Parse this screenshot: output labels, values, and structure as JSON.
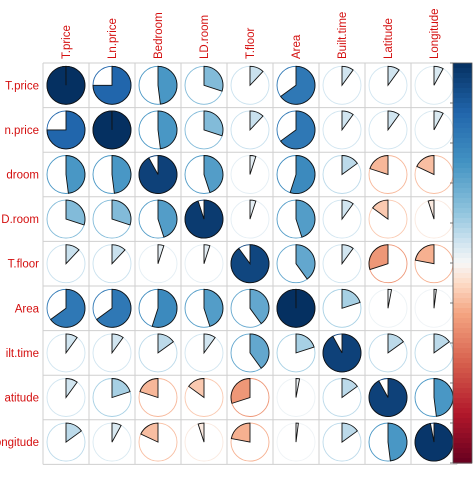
{
  "chart_data": {
    "type": "heatmap",
    "variables": [
      "T.price",
      "Ln.price",
      "Bedroom",
      "LD.room",
      "T.floor",
      "Area",
      "Built.time",
      "Latitude",
      "Longitude"
    ],
    "row_labels": [
      "T.price",
      "n.price",
      "droom",
      "D.room",
      "T.floor",
      "Area",
      "ilt.time",
      "atitude",
      "ongitude"
    ],
    "column_labels": [
      "T.price",
      "Ln.price",
      "Bedroom",
      "LD.room",
      "T.floor",
      "Area",
      "Built.time",
      "Latitude",
      "Longitude"
    ],
    "matrix": [
      [
        1.0,
        0.75,
        0.48,
        0.3,
        0.12,
        0.65,
        0.1,
        0.1,
        0.08
      ],
      [
        0.75,
        1.0,
        0.48,
        0.3,
        0.12,
        0.65,
        0.1,
        0.1,
        0.08
      ],
      [
        0.48,
        0.48,
        0.92,
        0.45,
        0.05,
        0.55,
        0.15,
        -0.2,
        -0.18
      ],
      [
        0.3,
        0.3,
        0.45,
        0.95,
        0.05,
        0.45,
        0.1,
        -0.15,
        -0.05
      ],
      [
        0.12,
        0.12,
        0.05,
        0.05,
        0.9,
        0.4,
        0.1,
        -0.3,
        -0.22
      ],
      [
        0.65,
        0.65,
        0.55,
        0.45,
        0.4,
        1.0,
        0.2,
        0.03,
        0.02
      ],
      [
        0.1,
        0.1,
        0.15,
        0.1,
        0.4,
        0.2,
        0.92,
        0.15,
        0.15
      ],
      [
        0.1,
        0.2,
        -0.2,
        -0.15,
        -0.3,
        0.03,
        0.15,
        0.92,
        0.48
      ],
      [
        0.15,
        0.08,
        -0.18,
        -0.05,
        -0.22,
        0.02,
        0.15,
        0.48,
        0.97
      ]
    ],
    "value_range": [
      -1,
      1
    ],
    "method": "pie",
    "colorbar": {
      "position": "right",
      "low_color": "#67001f",
      "mid_color": "#f7f7f7",
      "high_color": "#053061"
    },
    "grid": true
  }
}
